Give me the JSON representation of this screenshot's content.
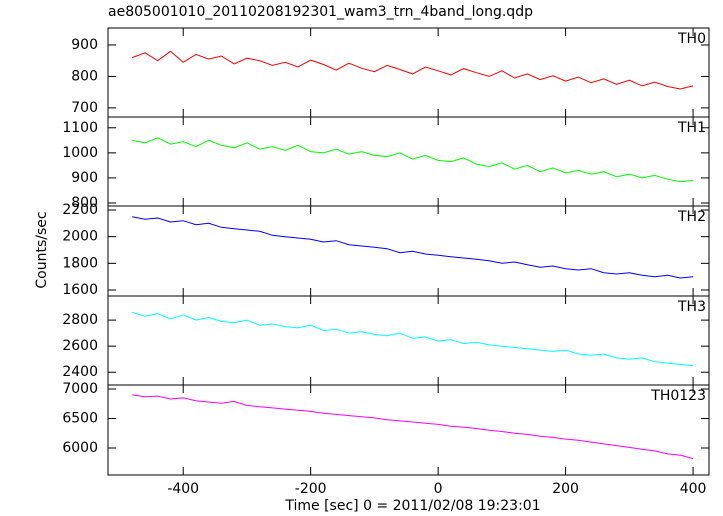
{
  "chart_data": [
    {
      "type": "line",
      "title": "ae805001010_20110208192301_wam3_trn_4band_long.qdp",
      "label": "TH0",
      "color": "#ff0000",
      "x": [
        -480,
        -460,
        -440,
        -420,
        -400,
        -380,
        -360,
        -340,
        -320,
        -300,
        -280,
        -260,
        -240,
        -220,
        -200,
        -180,
        -160,
        -140,
        -120,
        -100,
        -80,
        -60,
        -40,
        -20,
        0,
        20,
        40,
        60,
        80,
        100,
        120,
        140,
        160,
        180,
        200,
        220,
        240,
        260,
        280,
        300,
        320,
        340,
        360,
        380,
        400
      ],
      "values": [
        860,
        875,
        850,
        880,
        845,
        870,
        855,
        865,
        840,
        858,
        850,
        835,
        845,
        830,
        852,
        838,
        820,
        842,
        826,
        815,
        835,
        822,
        808,
        830,
        818,
        805,
        825,
        812,
        800,
        818,
        795,
        808,
        790,
        802,
        785,
        798,
        780,
        792,
        775,
        788,
        770,
        782,
        768,
        760,
        770
      ],
      "xlim": [
        -518,
        425
      ],
      "ylim": [
        671,
        954
      ],
      "yticks": [
        700,
        800,
        900
      ]
    },
    {
      "type": "line",
      "label": "TH1",
      "color": "#00ff00",
      "x": [
        -480,
        -460,
        -440,
        -420,
        -400,
        -380,
        -360,
        -340,
        -320,
        -300,
        -280,
        -260,
        -240,
        -220,
        -200,
        -180,
        -160,
        -140,
        -120,
        -100,
        -80,
        -60,
        -40,
        -20,
        0,
        20,
        40,
        60,
        80,
        100,
        120,
        140,
        160,
        180,
        200,
        220,
        240,
        260,
        280,
        300,
        320,
        340,
        360,
        380,
        400
      ],
      "values": [
        1050,
        1040,
        1060,
        1035,
        1045,
        1025,
        1050,
        1030,
        1020,
        1040,
        1015,
        1025,
        1010,
        1030,
        1005,
        1000,
        1015,
        995,
        1005,
        990,
        985,
        1000,
        975,
        990,
        970,
        965,
        980,
        955,
        945,
        960,
        935,
        950,
        925,
        940,
        920,
        930,
        915,
        925,
        905,
        915,
        900,
        910,
        895,
        885,
        890
      ],
      "xlim": [
        -518,
        425
      ],
      "ylim": [
        788,
        1143
      ],
      "yticks": [
        800,
        900,
        1000,
        1100
      ]
    },
    {
      "type": "line",
      "label": "TH2",
      "color": "#0000ff",
      "ylabel": "Counts/sec",
      "x": [
        -480,
        -460,
        -440,
        -420,
        -400,
        -380,
        -360,
        -340,
        -320,
        -300,
        -280,
        -260,
        -240,
        -220,
        -200,
        -180,
        -160,
        -140,
        -120,
        -100,
        -80,
        -60,
        -40,
        -20,
        0,
        20,
        40,
        60,
        80,
        100,
        120,
        140,
        160,
        180,
        200,
        220,
        240,
        260,
        280,
        300,
        320,
        340,
        360,
        380,
        400
      ],
      "values": [
        2150,
        2130,
        2140,
        2110,
        2120,
        2090,
        2100,
        2070,
        2060,
        2050,
        2040,
        2010,
        2000,
        1990,
        1980,
        1960,
        1970,
        1940,
        1930,
        1920,
        1910,
        1880,
        1890,
        1870,
        1860,
        1850,
        1840,
        1830,
        1820,
        1800,
        1810,
        1790,
        1770,
        1780,
        1760,
        1750,
        1760,
        1730,
        1720,
        1730,
        1710,
        1700,
        1710,
        1690,
        1700
      ],
      "xlim": [
        -518,
        425
      ],
      "ylim": [
        1555,
        2230
      ],
      "yticks": [
        1600,
        1800,
        2000,
        2200
      ]
    },
    {
      "type": "line",
      "label": "TH3",
      "color": "#00ffff",
      "x": [
        -480,
        -460,
        -440,
        -420,
        -400,
        -380,
        -360,
        -340,
        -320,
        -300,
        -280,
        -260,
        -240,
        -220,
        -200,
        -180,
        -160,
        -140,
        -120,
        -100,
        -80,
        -60,
        -40,
        -20,
        0,
        20,
        40,
        60,
        80,
        100,
        120,
        140,
        160,
        180,
        200,
        220,
        240,
        260,
        280,
        300,
        320,
        340,
        360,
        380,
        400
      ],
      "values": [
        2860,
        2830,
        2850,
        2810,
        2840,
        2800,
        2820,
        2790,
        2780,
        2800,
        2760,
        2770,
        2750,
        2740,
        2760,
        2720,
        2730,
        2700,
        2710,
        2690,
        2680,
        2700,
        2660,
        2670,
        2640,
        2650,
        2620,
        2630,
        2610,
        2600,
        2590,
        2580,
        2570,
        2560,
        2570,
        2540,
        2530,
        2540,
        2510,
        2500,
        2510,
        2480,
        2470,
        2460,
        2450
      ],
      "xlim": [
        -518,
        425
      ],
      "ylim": [
        2302,
        2985
      ],
      "yticks": [
        2400,
        2600,
        2800
      ]
    },
    {
      "type": "line",
      "label": "TH0123",
      "color": "#ff00ff",
      "xlabel": "Time [sec] 0 = 2011/02/08 19:23:01",
      "x": [
        -480,
        -460,
        -440,
        -420,
        -400,
        -380,
        -360,
        -340,
        -320,
        -300,
        -280,
        -260,
        -240,
        -220,
        -200,
        -180,
        -160,
        -140,
        -120,
        -100,
        -80,
        -60,
        -40,
        -20,
        0,
        20,
        40,
        60,
        80,
        100,
        120,
        140,
        160,
        180,
        200,
        220,
        240,
        260,
        280,
        300,
        320,
        340,
        360,
        380,
        400
      ],
      "values": [
        6900,
        6870,
        6880,
        6830,
        6850,
        6800,
        6780,
        6760,
        6790,
        6720,
        6700,
        6680,
        6660,
        6640,
        6620,
        6590,
        6570,
        6550,
        6530,
        6510,
        6480,
        6460,
        6440,
        6420,
        6400,
        6370,
        6350,
        6330,
        6300,
        6280,
        6250,
        6230,
        6200,
        6180,
        6150,
        6130,
        6100,
        6070,
        6040,
        6010,
        5980,
        5950,
        5900,
        5880,
        5820
      ],
      "xlim": [
        -518,
        425
      ],
      "ylim": [
        5542,
        7068
      ],
      "yticks": [
        6000,
        6500,
        7000
      ],
      "xticks": [
        -400,
        -200,
        0,
        200,
        400
      ]
    }
  ]
}
